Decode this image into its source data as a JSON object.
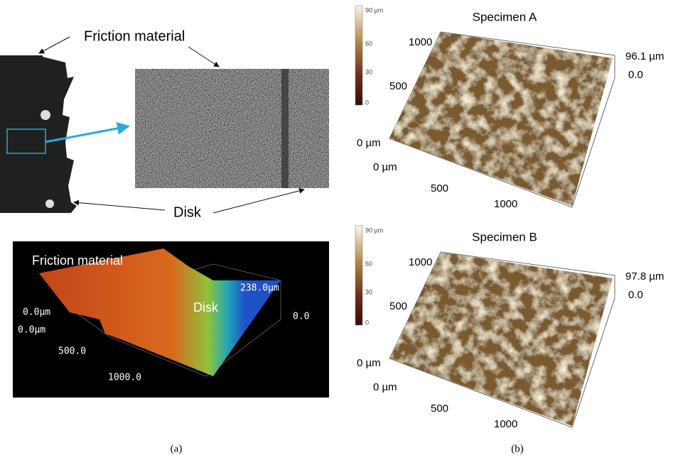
{
  "panel_a": {
    "photo_labels": {
      "friction_material": "Friction material",
      "disk": "Disk"
    },
    "profile": {
      "friction_material": "Friction material",
      "disk": "Disk",
      "height_max": "238.0μm",
      "height_min": "0.0",
      "y_origin": "0.0μm",
      "x_origin": "0.0μm",
      "x_ticks": [
        "500.0",
        "1000.0"
      ]
    },
    "caption": "(a)"
  },
  "panel_b": {
    "specimens": [
      {
        "title": "Specimen A",
        "colorbar": [
          "90 µm",
          "60",
          "30",
          "0"
        ],
        "y_ticks": [
          "1000",
          "500",
          "0 µm"
        ],
        "x_ticks": [
          "0 µm",
          "500",
          "1000"
        ],
        "z_max": "96.1 µm",
        "z_min": "0.0"
      },
      {
        "title": "Specimen B",
        "colorbar": [
          "90 µm",
          "60",
          "30",
          "0"
        ],
        "y_ticks": [
          "1000",
          "500",
          "0 µm"
        ],
        "x_ticks": [
          "0 µm",
          "500",
          "1000"
        ],
        "z_max": "97.8 µm",
        "z_min": "0.0"
      }
    ],
    "caption": "(b)"
  }
}
